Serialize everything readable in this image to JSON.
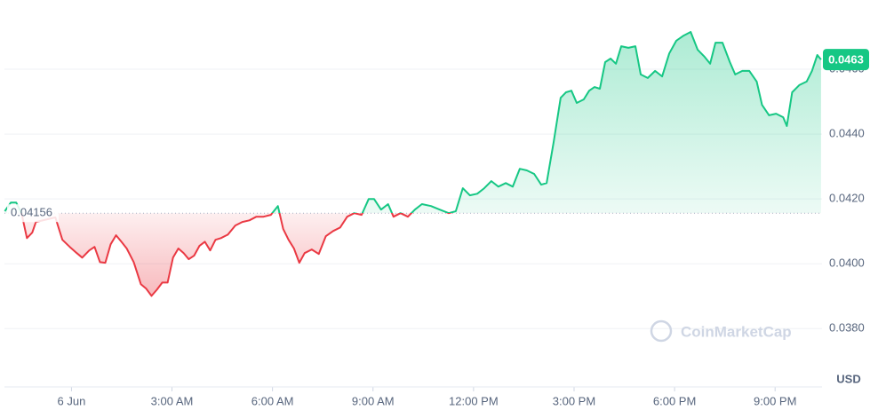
{
  "chart_data": {
    "type": "line",
    "baseline": 0.04156,
    "current_price": 0.0463,
    "watermark": "CoinMarketCap",
    "currency": "USD",
    "up_color": "#16c784",
    "down_color": "#ea3943",
    "grid": true,
    "xlim": [
      -2.0,
      22.4
    ],
    "ylim": [
      0.0362,
      0.048
    ],
    "xticks": [
      {
        "value": 0,
        "label": "6 Jun"
      },
      {
        "value": 3,
        "label": "3:00 AM"
      },
      {
        "value": 6,
        "label": "6:00 AM"
      },
      {
        "value": 9,
        "label": "9:00 AM"
      },
      {
        "value": 12,
        "label": "12:00 PM"
      },
      {
        "value": 15,
        "label": "3:00 PM"
      },
      {
        "value": 18,
        "label": "6:00 PM"
      },
      {
        "value": 21,
        "label": "9:00 PM"
      }
    ],
    "yticks": [
      {
        "value": 0.038,
        "label": "0.0380"
      },
      {
        "value": 0.04,
        "label": "0.0400"
      },
      {
        "value": 0.042,
        "label": "0.0420"
      },
      {
        "value": 0.044,
        "label": "0.0440"
      },
      {
        "value": 0.046,
        "label": "0.0460"
      }
    ],
    "x": [
      -1.99,
      -1.81,
      -1.65,
      -1.49,
      -1.33,
      -1.17,
      -1.06,
      -0.48,
      -0.27,
      -0.05,
      0.16,
      0.32,
      0.53,
      0.69,
      0.85,
      1.01,
      1.17,
      1.33,
      1.49,
      1.65,
      1.86,
      2.07,
      2.23,
      2.39,
      2.55,
      2.71,
      2.87,
      3.03,
      3.19,
      3.35,
      3.5,
      3.66,
      3.82,
      3.98,
      4.14,
      4.3,
      4.46,
      4.67,
      4.89,
      5.1,
      5.31,
      5.52,
      5.73,
      5.95,
      6.16,
      6.32,
      6.48,
      6.64,
      6.8,
      6.96,
      7.17,
      7.38,
      7.59,
      7.81,
      8.02,
      8.23,
      8.44,
      8.66,
      8.87,
      9.03,
      9.24,
      9.45,
      9.61,
      9.82,
      10.04,
      10.25,
      10.46,
      10.73,
      10.99,
      11.26,
      11.47,
      11.68,
      11.89,
      12.11,
      12.32,
      12.53,
      12.74,
      12.96,
      13.17,
      13.38,
      13.59,
      13.81,
      14.02,
      14.18,
      14.39,
      14.6,
      14.76,
      14.92,
      15.08,
      15.29,
      15.45,
      15.61,
      15.77,
      15.93,
      16.09,
      16.25,
      16.41,
      16.62,
      16.83,
      16.99,
      17.2,
      17.42,
      17.63,
      17.84,
      18.05,
      18.27,
      18.48,
      18.69,
      18.9,
      19.06,
      19.22,
      19.43,
      19.65,
      19.81,
      20.02,
      20.23,
      20.45,
      20.61,
      20.82,
      21.03,
      21.24,
      21.35,
      21.51,
      21.72,
      21.94,
      22.1,
      22.26,
      22.37
    ],
    "values": [
      0.04162,
      0.04189,
      0.04189,
      0.04156,
      0.04079,
      0.04096,
      0.04129,
      0.04143,
      0.04074,
      0.04052,
      0.04033,
      0.04019,
      0.04041,
      0.04052,
      0.04005,
      0.04003,
      0.0406,
      0.04088,
      0.04068,
      0.04047,
      0.04005,
      0.03937,
      0.03923,
      0.03901,
      0.0392,
      0.03942,
      0.03942,
      0.04019,
      0.04047,
      0.04033,
      0.04014,
      0.04025,
      0.04055,
      0.04068,
      0.04041,
      0.04074,
      0.04079,
      0.0409,
      0.04118,
      0.04129,
      0.04134,
      0.04145,
      0.04145,
      0.04151,
      0.04178,
      0.04107,
      0.04074,
      0.04047,
      0.04003,
      0.04033,
      0.04044,
      0.0403,
      0.04085,
      0.04101,
      0.04112,
      0.04145,
      0.04156,
      0.04151,
      0.042,
      0.042,
      0.04167,
      0.04184,
      0.04145,
      0.04156,
      0.04145,
      0.04167,
      0.04184,
      0.04178,
      0.04167,
      0.04156,
      0.04162,
      0.04233,
      0.04211,
      0.04216,
      0.04233,
      0.04255,
      0.04238,
      0.04249,
      0.04238,
      0.04293,
      0.04288,
      0.04277,
      0.04244,
      0.04249,
      0.04375,
      0.04512,
      0.04529,
      0.04534,
      0.04496,
      0.04507,
      0.04534,
      0.04545,
      0.0454,
      0.04622,
      0.04633,
      0.04617,
      0.04671,
      0.04666,
      0.04671,
      0.04584,
      0.04573,
      0.04595,
      0.04578,
      0.04649,
      0.04688,
      0.04704,
      0.04715,
      0.0466,
      0.04638,
      0.04617,
      0.04682,
      0.04682,
      0.04622,
      0.04584,
      0.04595,
      0.04595,
      0.04562,
      0.0449,
      0.04458,
      0.04463,
      0.04452,
      0.04425,
      0.04529,
      0.04551,
      0.04562,
      0.04595,
      0.04644,
      0.0463
    ]
  }
}
